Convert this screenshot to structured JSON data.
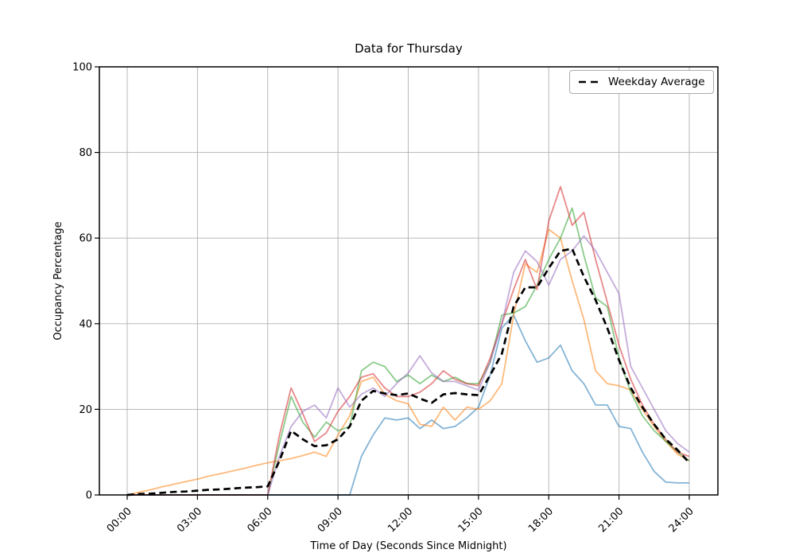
{
  "chart_data": {
    "type": "line",
    "title": "Data for Thursday",
    "xlabel": "Time of Day (Seconds Since Midnight)",
    "ylabel": "Occupancy Percentage",
    "legend": {
      "label": "Weekday Average",
      "position": "upper right"
    },
    "axes": {
      "xlim_hours": [
        0,
        24
      ],
      "ylim": [
        0,
        100
      ],
      "grid": true,
      "grid_color": "#b0b0b0",
      "x_tick_hours": [
        0,
        3,
        6,
        9,
        12,
        15,
        18,
        21,
        24
      ],
      "x_tick_labels": [
        "00:00",
        "03:00",
        "06:00",
        "09:00",
        "12:00",
        "15:00",
        "18:00",
        "21:00",
        "24:00"
      ],
      "x_tick_label_rotation_deg": 45,
      "y_tick_values": [
        0,
        20,
        40,
        60,
        80,
        100
      ],
      "y_tick_labels": [
        "0",
        "20",
        "40",
        "60",
        "80",
        "100"
      ]
    },
    "x_hours": [
      0,
      0.5,
      1,
      1.5,
      2,
      2.5,
      3,
      3.5,
      4,
      4.5,
      5,
      5.5,
      6,
      6.5,
      7,
      7.5,
      8,
      8.5,
      9,
      9.5,
      10,
      10.5,
      11,
      11.5,
      12,
      12.5,
      13,
      13.5,
      14,
      14.5,
      15,
      15.5,
      16,
      16.5,
      17,
      17.5,
      18,
      18.5,
      19,
      19.5,
      20,
      20.5,
      21,
      21.5,
      22,
      22.5,
      23,
      23.5,
      24
    ],
    "series": [
      {
        "name": "day-blue",
        "color": "#1f77b4",
        "alpha": 0.55,
        "dashed": false,
        "values": [
          0,
          0,
          0,
          0,
          0,
          0,
          0,
          0,
          0,
          0,
          0,
          0,
          0,
          0,
          0,
          0,
          0,
          0,
          0,
          0,
          9,
          14,
          18,
          17.5,
          18,
          15.5,
          17.5,
          15.5,
          16,
          18,
          20.5,
          28,
          39,
          42,
          36,
          31,
          32,
          35,
          29,
          26,
          21,
          21,
          16,
          15.5,
          10,
          5.5,
          3,
          2.8,
          2.8
        ]
      },
      {
        "name": "day-orange",
        "color": "#ff7f0e",
        "alpha": 0.55,
        "dashed": false,
        "values": [
          0,
          0.6,
          1.2,
          1.9,
          2.5,
          3.1,
          3.7,
          4.4,
          5,
          5.6,
          6.2,
          6.9,
          7.5,
          8,
          8.5,
          9.2,
          10,
          9,
          14,
          18.5,
          26.5,
          27.5,
          23.5,
          22,
          21.3,
          16.5,
          16,
          20.5,
          17.5,
          20.5,
          20,
          22,
          26,
          42,
          54,
          52,
          62,
          60,
          50,
          41,
          29,
          26,
          25.5,
          24.5,
          20,
          16,
          12.5,
          9.5,
          8
        ]
      },
      {
        "name": "day-green",
        "color": "#2ca02c",
        "alpha": 0.55,
        "dashed": false,
        "values": [
          0,
          0,
          0,
          0,
          0,
          0,
          0,
          0,
          0,
          0,
          0,
          0,
          0,
          12,
          23,
          17,
          13.5,
          17,
          15,
          16,
          29,
          31,
          30,
          26.5,
          28,
          26,
          28,
          26.5,
          27.5,
          26,
          26,
          31,
          42,
          42.5,
          44,
          49,
          55,
          60,
          67,
          56,
          46,
          44,
          32,
          24,
          18.5,
          15,
          12.5,
          10,
          8
        ]
      },
      {
        "name": "day-red",
        "color": "#d62728",
        "alpha": 0.55,
        "dashed": false,
        "values": [
          0,
          0,
          0,
          0,
          0,
          0,
          0,
          0,
          0,
          0,
          0,
          0,
          0,
          14,
          25,
          19,
          12.5,
          14.5,
          19.5,
          23,
          27.5,
          28.3,
          25,
          23,
          23,
          24,
          26,
          29,
          27,
          26,
          25.5,
          32,
          40,
          48,
          55,
          48,
          64,
          72,
          63,
          66,
          55,
          45,
          35,
          27,
          21,
          16.5,
          13,
          10,
          9
        ]
      },
      {
        "name": "day-purple",
        "color": "#9467bd",
        "alpha": 0.55,
        "dashed": false,
        "values": [
          0,
          0,
          0,
          0,
          0,
          0,
          0,
          0,
          0,
          0,
          0,
          0,
          0,
          9,
          16,
          19.5,
          21,
          18,
          25,
          20.5,
          23.5,
          25,
          23,
          26,
          28.5,
          32.5,
          28.5,
          26.5,
          26.5,
          25.5,
          24.5,
          31,
          40,
          52,
          57,
          54.5,
          49,
          55,
          57,
          60.5,
          57,
          52,
          47,
          30,
          25,
          20,
          15,
          12,
          10
        ]
      },
      {
        "name": "weekday-average",
        "color": "#000000",
        "alpha": 1,
        "dashed": true,
        "values": [
          0,
          0.2,
          0.3,
          0.5,
          0.7,
          0.8,
          1,
          1.2,
          1.3,
          1.5,
          1.7,
          1.8,
          2,
          8,
          15,
          13,
          11.4,
          11.6,
          13,
          16,
          22,
          24.3,
          23.7,
          23.3,
          23.7,
          22.5,
          21.5,
          23.5,
          23.8,
          23.5,
          23.3,
          28,
          33,
          44,
          48.5,
          48.5,
          53,
          57,
          57.5,
          51,
          45.5,
          39,
          31.5,
          25,
          20.5,
          16.5,
          13,
          10.5,
          7.5
        ]
      }
    ]
  }
}
